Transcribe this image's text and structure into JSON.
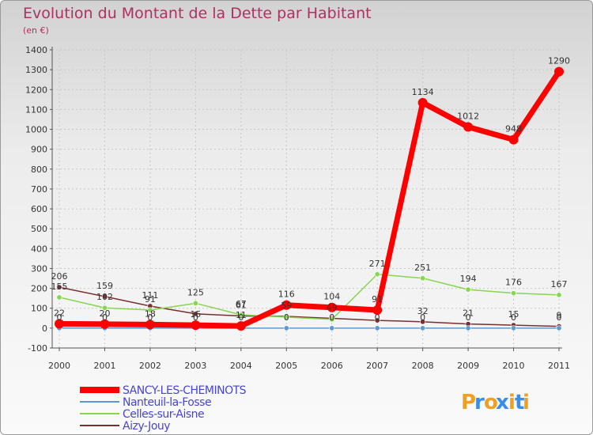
{
  "chart_data": {
    "type": "line",
    "title": "Evolution du Montant de la Dette par Habitant",
    "subtitle": "(en €)",
    "xlabel": "",
    "ylabel": "",
    "categories": [
      "2000",
      "2001",
      "2002",
      "2003",
      "2004",
      "2005",
      "2006",
      "2007",
      "2008",
      "2009",
      "2010",
      "2011"
    ],
    "ylim": [
      -100,
      1400
    ],
    "yticks": [
      -100,
      0,
      100,
      200,
      300,
      400,
      500,
      600,
      700,
      800,
      900,
      1000,
      1100,
      1200,
      1300,
      1400
    ],
    "grid": true,
    "legend": "bottom-left",
    "series": [
      {
        "name": "SANCY-LES-CHEMINOTS",
        "color": "#ff0000",
        "values": [
          22,
          20,
          18,
          15,
          11,
          116,
          104,
          91,
          1134,
          1012,
          948,
          1290
        ],
        "labels": [
          "22",
          "20",
          "18",
          "15",
          "11",
          "116",
          "104",
          "91",
          "1134",
          "1012",
          "948",
          "1290"
        ]
      },
      {
        "name": "Nanteuil-la-Fosse",
        "color": "#5b9bd5",
        "values": [
          0,
          0,
          0,
          0,
          0,
          0,
          0,
          0,
          0,
          0,
          0,
          0
        ],
        "labels": [
          "0",
          "0",
          "0",
          "0",
          "0",
          "0",
          "0",
          "0",
          "0",
          "0",
          "0",
          "0"
        ]
      },
      {
        "name": "Celles-sur-Aisne",
        "color": "#86d64e",
        "values": [
          155,
          102,
          91,
          125,
          67,
          55,
          44,
          271,
          251,
          194,
          176,
          167
        ],
        "labels": [
          "155",
          "102",
          "91",
          "125",
          "67",
          "",
          "",
          "271",
          "251",
          "194",
          "176",
          "167"
        ]
      },
      {
        "name": "Aizy-Jouy",
        "color": "#7a2e2e",
        "values": [
          206,
          159,
          111,
          72,
          61,
          59,
          49,
          39,
          32,
          21,
          15,
          9
        ],
        "labels": [
          "206",
          "159",
          "111",
          "",
          "61",
          "59",
          "49",
          "",
          "32",
          "21",
          "15",
          "9"
        ]
      }
    ]
  },
  "brand": {
    "letters": [
      "P",
      "r",
      "o",
      "x",
      "i",
      "t",
      "i"
    ],
    "colors": [
      "#f0a020",
      "#3a8ee6",
      "#f0a020",
      "#3a8ee6",
      "#f0a020",
      "#3a8ee6",
      "#f0a020"
    ]
  }
}
